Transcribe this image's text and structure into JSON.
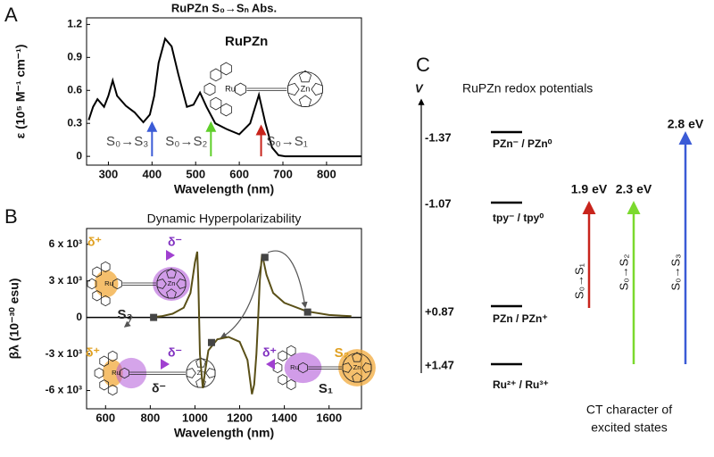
{
  "chart_data": [
    {
      "type": "line",
      "panel_label": "A",
      "title": "RuPZn S₀→Sₙ Abs.",
      "x_label": "Wavelength (nm)",
      "y_label": "ε (10⁵ M⁻¹ cm⁻¹)",
      "xlim": [
        250,
        880
      ],
      "xticks": [
        300,
        400,
        500,
        600,
        700,
        800
      ],
      "ylim": [
        -0.08,
        1.26
      ],
      "yticks": [
        0,
        0.3,
        0.6,
        0.9,
        1.2
      ],
      "series": [
        {
          "color": "#000000",
          "x": [
            255,
            265,
            275,
            290,
            300,
            310,
            320,
            340,
            360,
            380,
            395,
            405,
            415,
            430,
            445,
            460,
            480,
            495,
            510,
            525,
            545,
            570,
            600,
            625,
            645,
            660,
            675,
            690,
            705,
            880
          ],
          "values": [
            0.33,
            0.45,
            0.52,
            0.45,
            0.55,
            0.69,
            0.55,
            0.46,
            0.4,
            0.31,
            0.38,
            0.55,
            0.85,
            1.07,
            1.0,
            0.75,
            0.45,
            0.47,
            0.58,
            0.45,
            0.3,
            0.25,
            0.2,
            0.3,
            0.56,
            0.3,
            0.08,
            0.01,
            0,
            0
          ]
        }
      ],
      "arrows": [
        {
          "x": 400,
          "y": 0.3,
          "color": "#3b5bd6",
          "label": "S₀→S₃"
        },
        {
          "x": 535,
          "y": 0.3,
          "color": "#5fcf2a",
          "label": "S₀→S₂"
        },
        {
          "x": 650,
          "y": 0.27,
          "color": "#c8241c",
          "label": "S₀→S₁"
        }
      ],
      "structure": {
        "name": "RuPZn",
        "atoms": [
          "Ru",
          "Zn"
        ]
      }
    },
    {
      "type": "line",
      "panel_label": "B",
      "title": "Dynamic Hyperpolarizability",
      "x_label": "Wavelength (nm)",
      "y_label": "βλ (10⁻³⁰ esu)",
      "xlim": [
        515,
        1745
      ],
      "xticks": [
        600,
        800,
        1000,
        1200,
        1400,
        1600
      ],
      "ylim": [
        -7500,
        7300
      ],
      "yticks": [
        {
          "value": 6000,
          "label": "6 x 10³"
        },
        {
          "value": 3000,
          "label": "3 x 10³"
        },
        0,
        {
          "value": -3000,
          "label": "-3 x 10³"
        },
        {
          "value": -6000,
          "label": "-6 x 10³"
        }
      ],
      "series": [
        {
          "color": "#5a5018",
          "x": [
            800,
            850,
            900,
            950,
            980,
            1000,
            1010,
            1015,
            1022,
            1035,
            1045,
            1060,
            1100,
            1150,
            1200,
            1235,
            1255,
            1265,
            1275,
            1283,
            1290,
            1300,
            1320,
            1350,
            1400,
            1500,
            1600,
            1700
          ],
          "values": [
            0,
            100,
            300,
            800,
            2000,
            4500,
            5400,
            3000,
            -3000,
            -5800,
            -4500,
            -2700,
            -1800,
            -1600,
            -2000,
            -3500,
            -6300,
            -5500,
            -3000,
            0,
            3000,
            5200,
            3500,
            2000,
            1200,
            500,
            200,
            100
          ]
        },
        {
          "color": "#444444",
          "marker": "square",
          "x": [
            815,
            1074,
            1313,
            1504
          ],
          "values": [
            0,
            -2060,
            4930,
            440
          ]
        }
      ],
      "annotations": [
        "δ⁺",
        "δ⁻",
        "S₃",
        "δ⁺",
        "δ⁻",
        "S₂",
        "δ⁻",
        "δ⁺",
        "S₁"
      ],
      "structure": {
        "atoms": [
          "Ru",
          "Zn"
        ]
      }
    }
  ],
  "diagram": {
    "panel_label": "C",
    "title": "RuPZn redox potentials",
    "axis_label": "V",
    "levels": [
      {
        "potential": "-1.37",
        "label": "PZn⁻ / PZn⁰"
      },
      {
        "potential": "-1.07",
        "label": "tpy⁻ / tpy⁰"
      },
      {
        "potential": "+0.87",
        "label": "PZn / PZn⁺"
      },
      {
        "potential": "+1.47",
        "label": "Ru²⁺ / Ru³⁺"
      }
    ],
    "transitions": [
      {
        "energy": "1.9 eV",
        "label": "S₀→S₁",
        "color": "#c8241c"
      },
      {
        "energy": "2.3 eV",
        "label": "S₀→S₂",
        "color": "#7bd92e"
      },
      {
        "energy": "2.8 eV",
        "label": "S₀→S₃",
        "color": "#3b5bd6"
      }
    ],
    "caption": [
      "CT character of",
      "excited states"
    ]
  }
}
